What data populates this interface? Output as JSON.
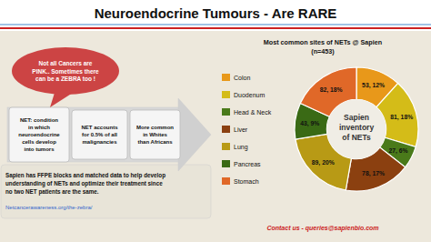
{
  "chart_data": {
    "type": "pie",
    "title": "Neuroendocrine Tumours - Are RARE",
    "subtitle": "Most common sites of NETs @ Sapien\n(n=453)",
    "categories": [
      "Colon",
      "Duodenum",
      "Head & Neck",
      "Liver",
      "Lung",
      "Pancreas",
      "Stomach"
    ],
    "values": [
      53,
      81,
      27,
      78,
      89,
      43,
      82
    ],
    "value_labels": [
      "53, 12%",
      "81, 18%",
      "27, 6%",
      "78, 17%",
      "89, 20%",
      "43, 9%",
      "82, 18%"
    ],
    "colors": [
      "#e8981a",
      "#d4bc18",
      "#4a7a1a",
      "#8b4010",
      "#b89a15",
      "#3a6a15",
      "#e06828"
    ],
    "data_labels": true,
    "legend": "left",
    "annotations": [
      "Sapien\ninventory\nof NETs",
      "Not all Cancers are\nPINK.. Sometimes there\ncan be a ZEBRA too !",
      "NET: condition\nin which\nneuroendocrine\ncells develop\ninto tumors",
      "NET accounts\nfor 0.5% of all\nmalignancies",
      "More common\nin Whites\nthan Africans",
      "Sapien has FFPE blocks and matched data to help develop\nunderstanding of NETs and optimize their treatment since\nno two NET patients are the same.",
      "Netcancerawareness.org/the-zebra/",
      "Contact us - queries@sapienbio.com"
    ]
  }
}
